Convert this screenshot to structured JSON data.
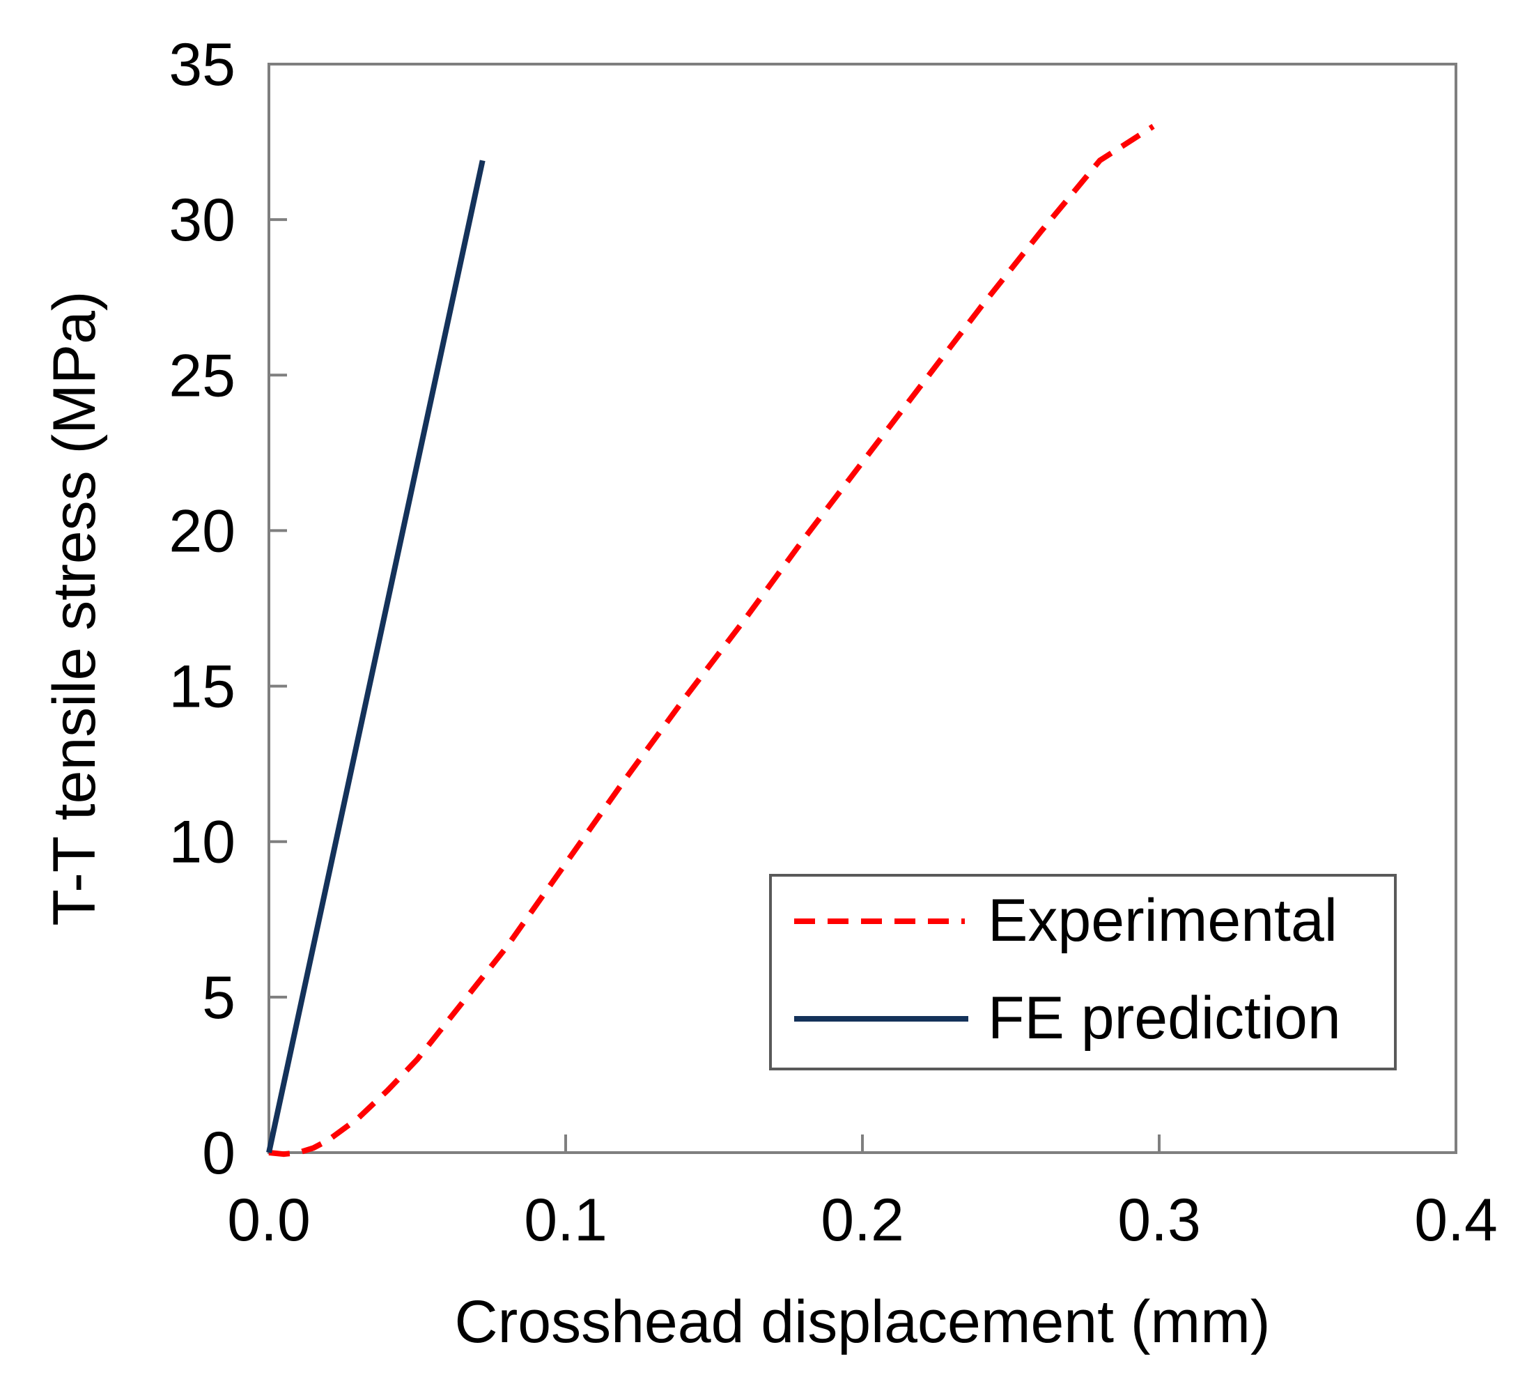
{
  "chart_data": {
    "type": "line",
    "title": "",
    "xlabel": "Crosshead displacement (mm)",
    "ylabel": "T-T tensile stress (MPa)",
    "xlim": [
      0,
      0.4
    ],
    "ylim": [
      0,
      35
    ],
    "xticks": [
      0.0,
      0.1,
      0.2,
      0.3,
      0.4
    ],
    "xtick_labels": [
      "0.0",
      "0.1",
      "0.2",
      "0.3",
      "0.4"
    ],
    "yticks": [
      0,
      5,
      10,
      15,
      20,
      25,
      30,
      35
    ],
    "ytick_labels": [
      "0",
      "5",
      "10",
      "15",
      "20",
      "25",
      "30",
      "35"
    ],
    "grid": false,
    "legend_position": "bottom-right",
    "series": [
      {
        "name": "Experimental",
        "style": "dashed",
        "color": "#ff0000",
        "x": [
          0.0,
          0.005,
          0.01,
          0.015,
          0.02,
          0.03,
          0.04,
          0.05,
          0.06,
          0.07,
          0.08,
          0.1,
          0.12,
          0.14,
          0.16,
          0.18,
          0.2,
          0.22,
          0.24,
          0.26,
          0.28,
          0.298
        ],
        "y": [
          0.0,
          -0.05,
          0.0,
          0.15,
          0.4,
          1.1,
          2.0,
          3.0,
          4.2,
          5.4,
          6.6,
          9.3,
          12.0,
          14.6,
          17.1,
          19.7,
          22.2,
          24.7,
          27.2,
          29.6,
          31.9,
          33.0
        ]
      },
      {
        "name": "FE prediction",
        "style": "solid",
        "color": "#14325a",
        "x": [
          0.0,
          0.072
        ],
        "y": [
          0.0,
          31.9
        ]
      }
    ]
  }
}
